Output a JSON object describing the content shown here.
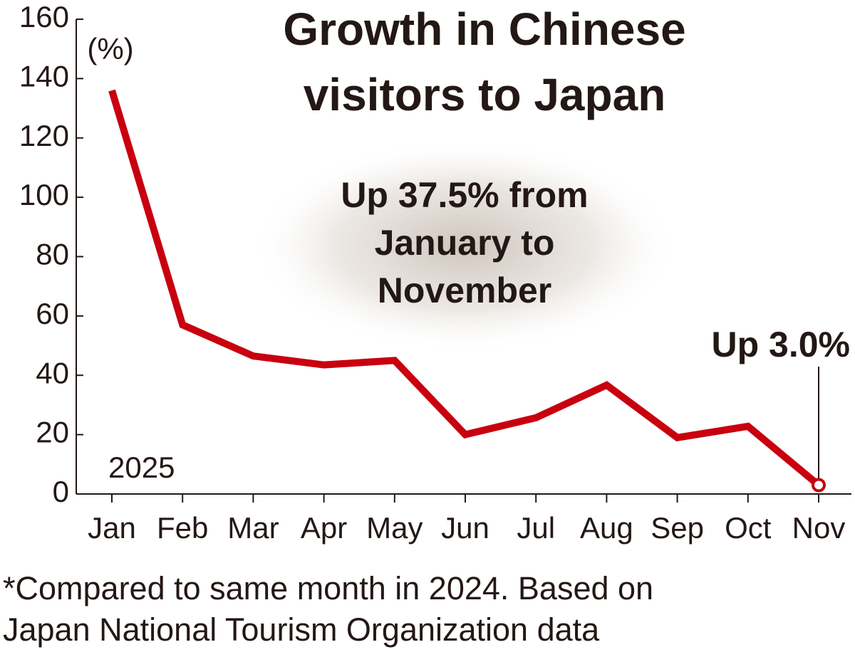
{
  "chart_data": {
    "type": "line",
    "title": [
      "Growth in Chinese",
      "visitors to Japan"
    ],
    "y_unit": "(%)",
    "year_label": "2025",
    "annotation": [
      "Up 37.5% from",
      "January to",
      "November"
    ],
    "point_label": "Up 3.0%",
    "footnote": [
      "*Compared to same month in 2024. Based on",
      "Japan National Tourism Organization data"
    ],
    "categories": [
      "Jan",
      "Feb",
      "Mar",
      "Apr",
      "May",
      "Jun",
      "Jul",
      "Aug",
      "Sep",
      "Oct",
      "Nov"
    ],
    "values": [
      136,
      57,
      46.5,
      43.5,
      45,
      20,
      25.7,
      36.7,
      19,
      22.8,
      3.0
    ],
    "color": "#c8000f",
    "ylim": [
      0,
      160
    ],
    "yticks": [
      0,
      20,
      40,
      60,
      80,
      100,
      120,
      140,
      160
    ],
    "grid": false
  }
}
